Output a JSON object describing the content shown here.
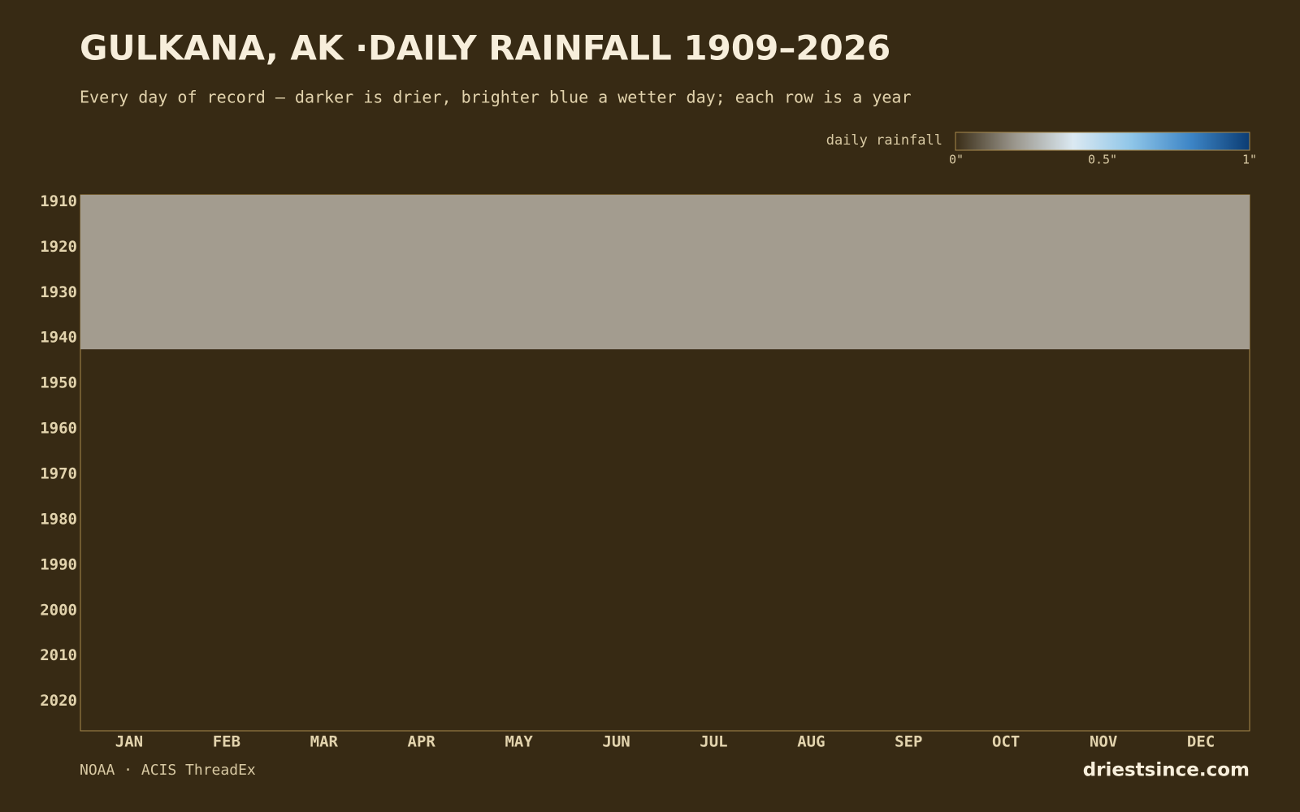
{
  "chart_data": {
    "type": "heatmap",
    "title": "GULKANA, AK ·DAILY RAINFALL 1909–2026",
    "subtitle": "Every day of record — darker is drier, brighter blue a wetter day; each row is a year",
    "categories": [
      "JAN",
      "FEB",
      "MAR",
      "APR",
      "MAY",
      "JUN",
      "JUL",
      "AUG",
      "SEP",
      "OCT",
      "NOV",
      "DEC"
    ],
    "ylim": [
      1909,
      2027
    ],
    "yticks": [
      1910,
      1920,
      1930,
      1940,
      1950,
      1960,
      1970,
      1980,
      1990,
      2000,
      2010,
      2020
    ],
    "no_data": [
      1909,
      1943
    ],
    "no_data_color": "#a39c8f",
    "colorbar": {
      "label": "daily rainfall",
      "lim": [
        0,
        1
      ],
      "ticks": [
        {
          "value": 0,
          "label": "0\""
        },
        {
          "value": 0.5,
          "label": "0.5\""
        },
        {
          "value": 1,
          "label": "1\""
        }
      ],
      "colors": [
        "#3a2d17",
        "#9a968c",
        "#dbe9f2",
        "#8ec5e8",
        "#3d85c6",
        "#0b3c73"
      ]
    },
    "source": "NOAA · ACIS ThreadEx",
    "brand": "driestsince.com"
  }
}
